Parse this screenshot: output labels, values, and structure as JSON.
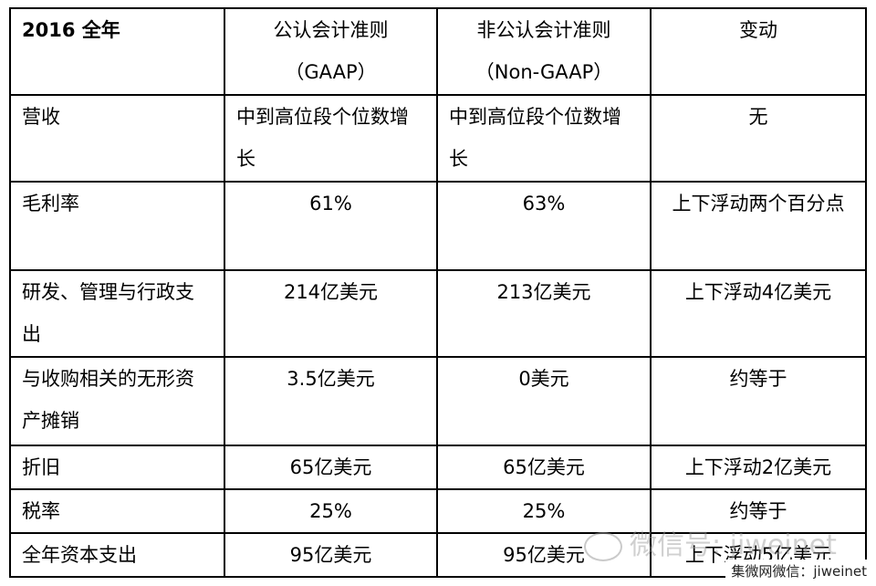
{
  "header": [
    "2016 全年",
    "公认会计准则\n（GAAP）",
    "非公认会计准则\n（Non-GAAP）",
    "变动"
  ],
  "rows": [
    [
      "营收",
      "中到高位段个位数增长",
      "中到高位段个位数增长",
      "无"
    ],
    [
      "毛利率",
      "61%",
      "63%",
      "上下浮动两个百分点"
    ],
    [
      "研发、管理与行政支出",
      "214亿美元",
      "213亿美元",
      "上下浮动4亿美元"
    ],
    [
      "与收购相关的无形资产摊销",
      "3.5亿美元",
      "0美元",
      "约等于"
    ],
    [
      "折旧",
      "65亿美元",
      "65亿美元",
      "上下浮动2亿美元"
    ],
    [
      "税率",
      "25%",
      "25%",
      "约等于"
    ],
    [
      "全年资本支出",
      "95亿美元",
      "95亿美元",
      "上下浮动5亿美元"
    ]
  ],
  "watermark": "微信号: jiweinet",
  "credit": "集微网微信：jiweinet"
}
